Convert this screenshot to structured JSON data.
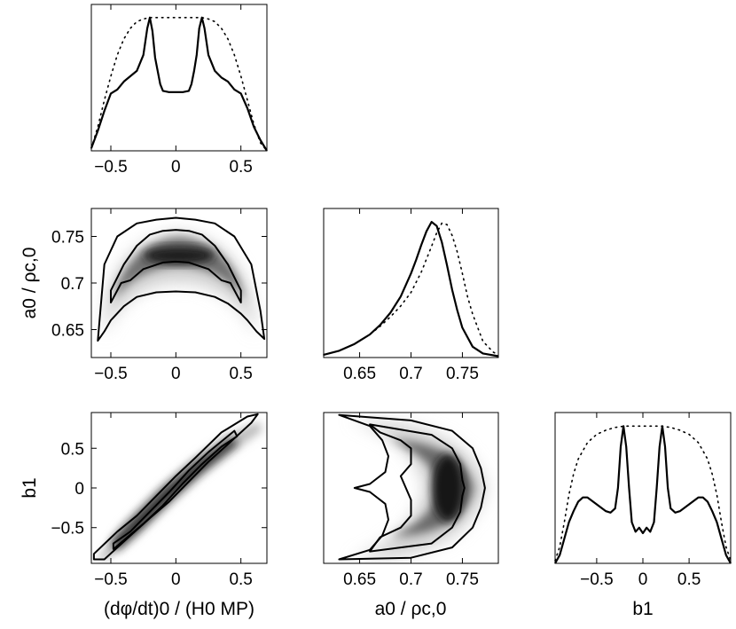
{
  "chart_data": [
    {
      "id": "p-phidot-1d",
      "type": "line",
      "xlim": [
        -0.65,
        0.7
      ],
      "xticks": [
        -0.5,
        0,
        0.5
      ],
      "xtick_labels": [
        "−0.5",
        "0",
        "0.5"
      ],
      "series": [
        {
          "style": "solid",
          "x": [
            -0.65,
            -0.6,
            -0.55,
            -0.5,
            -0.45,
            -0.4,
            -0.35,
            -0.3,
            -0.25,
            -0.22,
            -0.2,
            -0.18,
            -0.16,
            -0.14,
            -0.12,
            -0.1,
            -0.05,
            0,
            0.05,
            0.1,
            0.12,
            0.14,
            0.16,
            0.18,
            0.2,
            0.22,
            0.25,
            0.3,
            0.35,
            0.4,
            0.45,
            0.5,
            0.55,
            0.6,
            0.65,
            0.7
          ],
          "y": [
            0.02,
            0.15,
            0.3,
            0.43,
            0.46,
            0.52,
            0.56,
            0.6,
            0.72,
            0.92,
            1.0,
            0.9,
            0.7,
            0.6,
            0.5,
            0.45,
            0.44,
            0.44,
            0.44,
            0.45,
            0.5,
            0.6,
            0.72,
            0.92,
            1.0,
            0.92,
            0.72,
            0.6,
            0.55,
            0.52,
            0.46,
            0.43,
            0.32,
            0.18,
            0.08,
            0.0
          ]
        },
        {
          "style": "dotted",
          "x": [
            -0.65,
            -0.6,
            -0.55,
            -0.5,
            -0.45,
            -0.4,
            -0.35,
            -0.3,
            -0.25,
            -0.2,
            -0.15,
            -0.1,
            -0.05,
            0,
            0.05,
            0.1,
            0.15,
            0.2,
            0.25,
            0.3,
            0.35,
            0.4,
            0.45,
            0.5,
            0.55,
            0.6,
            0.65,
            0.7
          ],
          "y": [
            0.02,
            0.18,
            0.38,
            0.56,
            0.72,
            0.84,
            0.92,
            0.97,
            0.99,
            1.0,
            1.0,
            1.0,
            1.0,
            1.0,
            1.0,
            1.0,
            1.0,
            1.0,
            0.99,
            0.97,
            0.92,
            0.84,
            0.72,
            0.56,
            0.38,
            0.2,
            0.06,
            0.0
          ]
        }
      ]
    },
    {
      "id": "p-a0-phidot-2d",
      "type": "heatmap",
      "xlim": [
        -0.65,
        0.7
      ],
      "ylim": [
        0.62,
        0.78
      ],
      "xticks": [
        -0.5,
        0,
        0.5
      ],
      "xtick_labels": [
        "−0.5",
        "0",
        "0.5"
      ],
      "yticks": [
        0.65,
        0.7,
        0.75
      ],
      "ytick_labels": [
        "0.65",
        "0.7",
        "0.75"
      ],
      "ylabel": "a0 / ρc,0",
      "contours": [
        {
          "level": "inner",
          "x": [
            -0.5,
            -0.4,
            -0.3,
            -0.2,
            -0.1,
            0,
            0.1,
            0.2,
            0.3,
            0.4,
            0.5,
            0.5,
            0.42,
            0.35,
            0.25,
            0.1,
            0,
            -0.1,
            -0.25,
            -0.35,
            -0.42,
            -0.5
          ],
          "y": [
            0.692,
            0.72,
            0.74,
            0.752,
            0.756,
            0.757,
            0.756,
            0.752,
            0.74,
            0.72,
            0.692,
            0.679,
            0.7,
            0.703,
            0.715,
            0.722,
            0.723,
            0.722,
            0.715,
            0.703,
            0.7,
            0.679
          ]
        },
        {
          "level": "outer",
          "x": [
            -0.6,
            -0.55,
            -0.45,
            -0.3,
            -0.15,
            0,
            0.15,
            0.3,
            0.45,
            0.58,
            0.65,
            0.68,
            0.62,
            0.55,
            0.5,
            0.4,
            0.3,
            0.15,
            0,
            -0.15,
            -0.3,
            -0.4,
            -0.5,
            -0.55,
            -0.6
          ],
          "y": [
            0.638,
            0.72,
            0.75,
            0.764,
            0.768,
            0.77,
            0.768,
            0.764,
            0.75,
            0.72,
            0.67,
            0.64,
            0.648,
            0.66,
            0.667,
            0.678,
            0.685,
            0.69,
            0.691,
            0.69,
            0.685,
            0.675,
            0.66,
            0.648,
            0.638
          ]
        }
      ]
    },
    {
      "id": "p-a0-1d",
      "type": "line",
      "xlim": [
        0.615,
        0.785
      ],
      "xticks": [
        0.65,
        0.7,
        0.75
      ],
      "xtick_labels": [
        "0.65",
        "0.7",
        "0.75"
      ],
      "series": [
        {
          "style": "solid",
          "x": [
            0.615,
            0.63,
            0.645,
            0.66,
            0.67,
            0.68,
            0.69,
            0.7,
            0.705,
            0.71,
            0.715,
            0.72,
            0.725,
            0.73,
            0.735,
            0.74,
            0.745,
            0.75,
            0.76,
            0.77,
            0.785
          ],
          "y": [
            0.02,
            0.05,
            0.1,
            0.17,
            0.24,
            0.33,
            0.45,
            0.62,
            0.72,
            0.83,
            0.93,
            1.0,
            0.97,
            0.85,
            0.68,
            0.5,
            0.35,
            0.22,
            0.08,
            0.03,
            0.01
          ]
        },
        {
          "style": "dotted",
          "x": [
            0.615,
            0.63,
            0.645,
            0.66,
            0.67,
            0.68,
            0.69,
            0.7,
            0.71,
            0.72,
            0.725,
            0.73,
            0.735,
            0.74,
            0.745,
            0.75,
            0.755,
            0.76,
            0.77,
            0.78,
            0.785
          ],
          "y": [
            0.02,
            0.05,
            0.1,
            0.17,
            0.23,
            0.3,
            0.38,
            0.48,
            0.63,
            0.82,
            0.92,
            0.99,
            0.98,
            0.9,
            0.78,
            0.62,
            0.45,
            0.32,
            0.12,
            0.04,
            0.02
          ]
        }
      ]
    },
    {
      "id": "p-b1-phidot-2d",
      "type": "heatmap",
      "xlim": [
        -0.65,
        0.7
      ],
      "ylim": [
        -0.95,
        0.95
      ],
      "xticks": [
        -0.5,
        0,
        0.5
      ],
      "xtick_labels": [
        "−0.5",
        "0",
        "0.5"
      ],
      "yticks": [
        0.5,
        0,
        -0.5
      ],
      "ytick_labels": [
        "0.5",
        "0",
        "−0.5"
      ],
      "xlabel": "(dφ/dt)0 / (H0 MP)",
      "ylabel": "b1",
      "contours": [
        {
          "level": "inner",
          "x": [
            -0.48,
            -0.35,
            -0.2,
            -0.05,
            0.1,
            0.25,
            0.45,
            0.47,
            0.35,
            0.2,
            0.05,
            -0.1,
            -0.25,
            -0.48
          ],
          "y": [
            -0.7,
            -0.55,
            -0.3,
            -0.05,
            0.22,
            0.45,
            0.72,
            0.65,
            0.52,
            0.3,
            0.05,
            -0.22,
            -0.45,
            -0.77
          ]
        },
        {
          "level": "outer",
          "x": [
            -0.63,
            -0.45,
            -0.3,
            -0.15,
            0,
            0.15,
            0.35,
            0.55,
            0.63,
            0.58,
            0.4,
            0.25,
            0.1,
            -0.05,
            -0.2,
            -0.35,
            -0.55,
            -0.63
          ],
          "y": [
            -0.83,
            -0.55,
            -0.35,
            -0.1,
            0.15,
            0.38,
            0.7,
            0.9,
            0.93,
            0.82,
            0.55,
            0.33,
            0.08,
            -0.17,
            -0.38,
            -0.6,
            -0.9,
            -0.9
          ]
        }
      ]
    },
    {
      "id": "p-b1-a0-2d",
      "type": "heatmap",
      "xlim": [
        0.615,
        0.785
      ],
      "ylim": [
        -0.95,
        0.95
      ],
      "xticks": [
        0.65,
        0.7,
        0.75
      ],
      "xtick_labels": [
        "0.65",
        "0.7",
        "0.75"
      ],
      "xlabel": "a0 / ρc,0",
      "contours": [
        {
          "level": "inner",
          "x": [
            0.66,
            0.72,
            0.74,
            0.748,
            0.75,
            0.752,
            0.75,
            0.748,
            0.74,
            0.72,
            0.66,
            0.67,
            0.69,
            0.7,
            0.7,
            0.695,
            0.69,
            0.7,
            0.7,
            0.69,
            0.67,
            0.66
          ],
          "y": [
            0.8,
            0.67,
            0.5,
            0.3,
            0.1,
            0.0,
            -0.1,
            -0.3,
            -0.5,
            -0.7,
            -0.8,
            -0.62,
            -0.5,
            -0.35,
            -0.15,
            0.0,
            0.15,
            0.3,
            0.5,
            0.6,
            0.7,
            0.8
          ]
        },
        {
          "level": "outer",
          "x": [
            0.63,
            0.7,
            0.74,
            0.76,
            0.768,
            0.772,
            0.768,
            0.76,
            0.74,
            0.7,
            0.63,
            0.66,
            0.672,
            0.678,
            0.675,
            0.66,
            0.645,
            0.66,
            0.675,
            0.678,
            0.672,
            0.66,
            0.63
          ],
          "y": [
            0.92,
            0.85,
            0.72,
            0.5,
            0.25,
            0.0,
            -0.25,
            -0.5,
            -0.75,
            -0.88,
            -0.9,
            -0.78,
            -0.6,
            -0.4,
            -0.2,
            -0.05,
            0.0,
            0.05,
            0.2,
            0.4,
            0.6,
            0.78,
            0.92
          ]
        }
      ]
    },
    {
      "id": "p-b1-1d",
      "type": "line",
      "xlim": [
        -0.95,
        0.95
      ],
      "xticks": [
        -0.5,
        0,
        0.5
      ],
      "xtick_labels": [
        "−0.5",
        "0",
        "0.5"
      ],
      "xlabel": "b1",
      "series": [
        {
          "style": "solid",
          "x": [
            -0.95,
            -0.9,
            -0.85,
            -0.8,
            -0.75,
            -0.7,
            -0.65,
            -0.6,
            -0.5,
            -0.4,
            -0.35,
            -0.3,
            -0.27,
            -0.24,
            -0.21,
            -0.18,
            -0.15,
            -0.12,
            -0.08,
            -0.04,
            0,
            0.04,
            0.08,
            0.12,
            0.15,
            0.18,
            0.21,
            0.24,
            0.27,
            0.3,
            0.35,
            0.4,
            0.5,
            0.6,
            0.65,
            0.7,
            0.75,
            0.8,
            0.85,
            0.9,
            0.95
          ],
          "y": [
            0.0,
            0.06,
            0.18,
            0.3,
            0.38,
            0.45,
            0.48,
            0.48,
            0.43,
            0.38,
            0.37,
            0.4,
            0.55,
            0.85,
            1.0,
            0.85,
            0.55,
            0.3,
            0.23,
            0.26,
            0.22,
            0.26,
            0.23,
            0.3,
            0.55,
            0.85,
            1.0,
            0.85,
            0.55,
            0.4,
            0.37,
            0.38,
            0.43,
            0.48,
            0.48,
            0.45,
            0.38,
            0.3,
            0.18,
            0.06,
            0.0
          ]
        },
        {
          "style": "dotted",
          "x": [
            -0.95,
            -0.9,
            -0.85,
            -0.8,
            -0.75,
            -0.7,
            -0.6,
            -0.5,
            -0.4,
            -0.3,
            -0.2,
            -0.1,
            0,
            0.1,
            0.2,
            0.3,
            0.4,
            0.5,
            0.6,
            0.7,
            0.75,
            0.8,
            0.85,
            0.9,
            0.95
          ],
          "y": [
            0.02,
            0.12,
            0.3,
            0.5,
            0.65,
            0.76,
            0.88,
            0.94,
            0.97,
            0.99,
            1.0,
            1.0,
            1.0,
            1.0,
            1.0,
            0.99,
            0.97,
            0.94,
            0.88,
            0.76,
            0.65,
            0.5,
            0.3,
            0.12,
            0.02
          ]
        }
      ]
    }
  ]
}
